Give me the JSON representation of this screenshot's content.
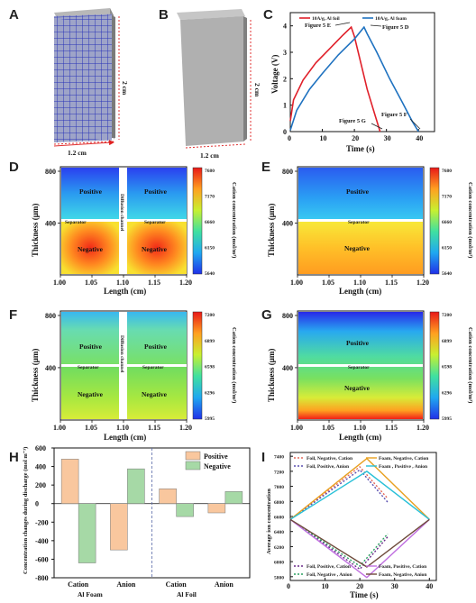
{
  "panels": {
    "A": "A",
    "B": "B",
    "C": "C",
    "D": "D",
    "E": "E",
    "F": "F",
    "G": "G",
    "H": "H",
    "I": "I"
  },
  "a": {
    "width": "1.2 cm",
    "height": "2 cm"
  },
  "b": {
    "width": "1.2 cm",
    "height": "2 cm"
  },
  "c": {
    "figure_labels": [
      "Figure 5 E",
      "Figure 5 D",
      "Figure 5 G",
      "Figure 5 F"
    ]
  },
  "contour": {
    "positive": "Positive",
    "negative": "Negative",
    "separator": "Separator",
    "diffusion": "Diffusion  channel",
    "de_colorbar_ticks": [
      "7680",
      "7170",
      "6660",
      "6150",
      "5640"
    ],
    "fg_colorbar_ticks": [
      "7200",
      "6899",
      "6598",
      "6296",
      "5995"
    ],
    "colorbar_title": "Cation concentration (mol/m³)",
    "x_ticks": [
      "1.00",
      "1.05",
      "1.10",
      "1.15",
      "1.20"
    ],
    "y_ticks": [
      "800",
      "400"
    ],
    "xlabel": "Length (cm)",
    "ylabel": "Thickness (μm)",
    "colors": {
      "blue": "#2b3bf0",
      "cyan": "#33c8f0",
      "green": "#6fdc60",
      "yellow": "#f3e83a",
      "orange": "#ff9a22",
      "red": "#ee2416"
    }
  },
  "h": {
    "group_labels": [
      "Al Foam",
      "Al Foil"
    ]
  },
  "chart_data": [
    {
      "type": "line",
      "panel": "C",
      "xlabel": "Time (s)",
      "ylabel": "Voltage (V)",
      "xlim": [
        0,
        45
      ],
      "ylim": [
        0,
        4.5
      ],
      "x_ticks": [
        0,
        10,
        20,
        30,
        40
      ],
      "y_ticks": [
        0,
        1,
        2,
        3,
        4
      ],
      "series": [
        {
          "name": "10A/g, Al foil",
          "color": "#e0202a",
          "x": [
            0,
            1,
            4,
            8,
            12,
            16,
            19,
            20,
            22,
            24,
            26,
            28
          ],
          "y": [
            0.4,
            1.2,
            1.95,
            2.6,
            3.1,
            3.6,
            3.95,
            3.6,
            2.6,
            1.6,
            0.8,
            0
          ]
        },
        {
          "name": "10A/g, Al foam",
          "color": "#1f72c0",
          "x": [
            0,
            2,
            6,
            10,
            15,
            20,
            23,
            24,
            27,
            31,
            35,
            38,
            40
          ],
          "y": [
            0.05,
            0.8,
            1.6,
            2.2,
            2.9,
            3.5,
            3.95,
            3.7,
            3.0,
            2.0,
            1.1,
            0.4,
            0
          ]
        }
      ]
    },
    {
      "type": "bar",
      "panel": "H",
      "ylabel": "Concentration changes during discharge (mol m⁻³)",
      "ylim": [
        -800,
        600
      ],
      "y_ticks": [
        -800,
        -600,
        -400,
        -200,
        0,
        200,
        400,
        600
      ],
      "categories": [
        "Cation",
        "Anion",
        "Cation",
        "Anion"
      ],
      "series": [
        {
          "name": "Positive",
          "color": "#f9c79e",
          "values": [
            480,
            -500,
            160,
            -100
          ]
        },
        {
          "name": "Negative",
          "color": "#a6d9a6",
          "values": [
            -640,
            375,
            -140,
            130
          ]
        }
      ]
    },
    {
      "type": "line",
      "panel": "I",
      "xlabel": "Time (s)",
      "ylabel": "Average ion concentration",
      "xlim": [
        0,
        42
      ],
      "ylim": [
        5750,
        7450
      ],
      "x_ticks": [
        0,
        10,
        20,
        30,
        40
      ],
      "y_ticks": [
        5800,
        6000,
        6200,
        6400,
        6600,
        6800,
        7000,
        7200,
        7400
      ],
      "series": [
        {
          "name": "Foil, Negative, Cation",
          "color": "#e46a5c",
          "dash": true,
          "x": [
            0,
            20,
            28
          ],
          "y": [
            6560,
            7260,
            6840
          ]
        },
        {
          "name": "Foil, Positive, Anion",
          "color": "#5a4fb0",
          "dash": true,
          "x": [
            0,
            20,
            28
          ],
          "y": [
            6560,
            7220,
            6790
          ]
        },
        {
          "name": "Foam, Negative, Cation",
          "color": "#e8a020",
          "dash": false,
          "x": [
            0,
            22,
            40
          ],
          "y": [
            6560,
            7370,
            6560
          ]
        },
        {
          "name": "Foam , Positive , Anion",
          "color": "#28c0d8",
          "dash": false,
          "x": [
            0,
            22,
            40
          ],
          "y": [
            6560,
            7200,
            6560
          ]
        },
        {
          "name": "Foil, Positive, Cation",
          "color": "#6a2a8a",
          "dash": true,
          "x": [
            0,
            20,
            28
          ],
          "y": [
            6560,
            5900,
            6330
          ]
        },
        {
          "name": "Foil, Negative , Anion",
          "color": "#2aa060",
          "dash": true,
          "x": [
            0,
            20,
            28
          ],
          "y": [
            6560,
            5940,
            6370
          ]
        },
        {
          "name": "Foam, Positive, Cation",
          "color": "#c070e0",
          "dash": false,
          "x": [
            0,
            22,
            40
          ],
          "y": [
            6560,
            5790,
            6560
          ]
        },
        {
          "name": "Foam, Negative, Anion",
          "color": "#6e4a3a",
          "dash": false,
          "x": [
            0,
            22,
            40
          ],
          "y": [
            6560,
            5930,
            6560
          ]
        }
      ]
    }
  ]
}
